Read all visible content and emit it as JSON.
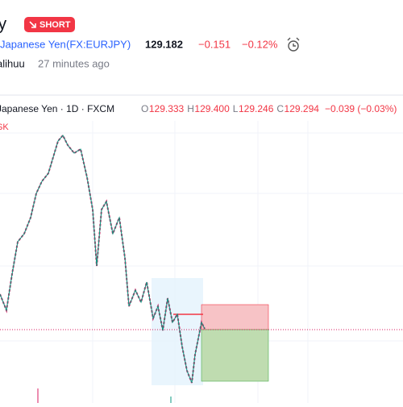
{
  "header": {
    "title": "py",
    "badge": "SHORT",
    "symbol_name": "Japanese Yen",
    "symbol_code": "(FX:EURJPY)",
    "price": "129.182",
    "change": "−0.151",
    "change_pct": "−0.12%",
    "author": "alihuu",
    "time": "27 minutes ago"
  },
  "chart": {
    "legend": "Japanese Yen · 1D · FXCM",
    "ohlc": [
      {
        "key": "O",
        "value": "129.333"
      },
      {
        "key": "H",
        "value": "129.400"
      },
      {
        "key": "L",
        "value": "129.246"
      },
      {
        "key": "C",
        "value": "129.294"
      }
    ],
    "change": "−0.039 (−0.03%)",
    "side_label": "SK"
  }
}
